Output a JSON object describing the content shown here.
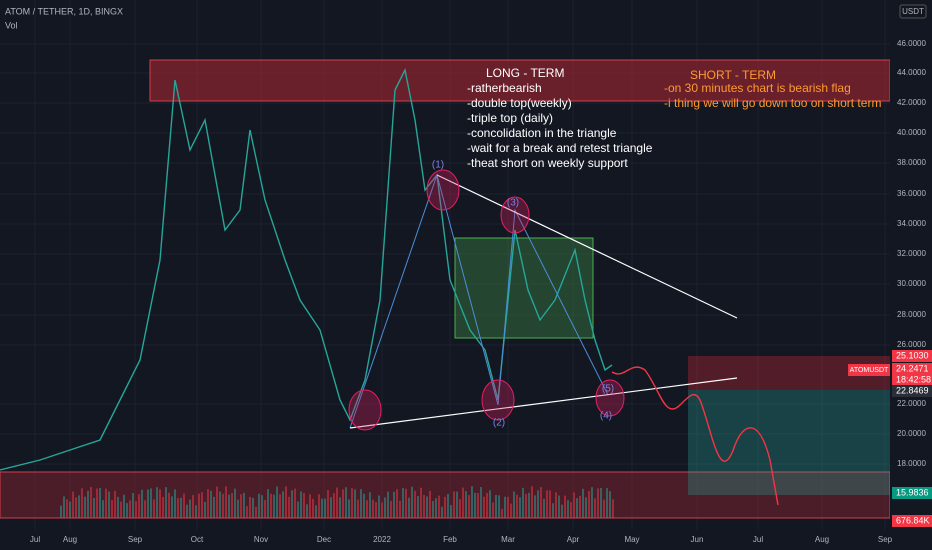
{
  "header": {
    "symbol": "ATOM / TETHER, 1D, BINGX",
    "volume_label": "Vol",
    "currency": "USDT"
  },
  "price_axis": {
    "labels": [
      "46.0000",
      "44.0000",
      "42.0000",
      "40.0000",
      "38.0000",
      "36.0000",
      "34.0000",
      "32.0000",
      "30.0000",
      "28.0000",
      "26.0000",
      "22.0000",
      "20.0000",
      "18.0000"
    ]
  },
  "time_axis": {
    "labels": [
      "Jul",
      "Aug",
      "Sep",
      "Oct",
      "Nov",
      "Dec",
      "2022",
      "Feb",
      "Mar",
      "Apr",
      "May",
      "Jun",
      "Jul",
      "Aug",
      "Sep"
    ]
  },
  "badges": {
    "ticker": "ATOMUSDT",
    "stop": "25.1030",
    "last": "24.2471",
    "countdown": "18:42:58",
    "entry": "22.8469",
    "target": "15.9836",
    "volume": "676.84K"
  },
  "long_term": {
    "title": "LONG - TERM",
    "lines": [
      "-ratherbearish",
      "-double top(weekly)",
      "-triple top (daily)",
      "-concolidation in the triangle",
      "-wait for a break and retest triangle",
      "-theat short on weekly support"
    ]
  },
  "short_term": {
    "title": "SHORT - TERM",
    "lines": [
      "-on 30 minutes chart is bearish flag",
      "-i thing we will go down too on short term"
    ]
  },
  "points": [
    "(1)",
    "(2)",
    "(3)",
    "(4)",
    "(5)"
  ]
}
